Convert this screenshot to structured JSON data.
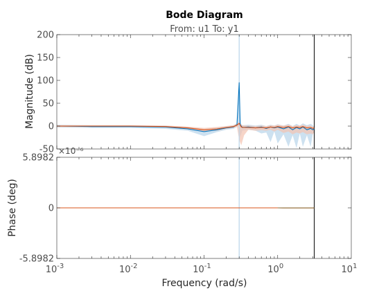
{
  "figure": {
    "title": "Bode Diagram",
    "subtitle": "From: u1  To: y1",
    "xlabel": "Frequency  (rad/s)",
    "colors": {
      "axes": "#262626",
      "tick_label": "#4d4d4d",
      "series_blue": "#0072bd",
      "series_blue_band": "#b8d4ea",
      "series_red": "#d95319",
      "series_red_band": "#f3c3b0",
      "black_line": "#000000"
    }
  },
  "chart_data": [
    {
      "type": "line",
      "panel": "magnitude",
      "ylabel": "Magnitude (dB)",
      "xscale": "log",
      "xlim": [
        0.001,
        10
      ],
      "ylim": [
        -50,
        200
      ],
      "yticks": [
        "-50",
        "0",
        "50",
        "100",
        "150",
        "200"
      ],
      "grid": false,
      "vertical_lines": [
        {
          "name": "blue-vertical-line",
          "x": 0.3,
          "color": "#b8d4ea"
        },
        {
          "name": "black-vertical-line",
          "x": 3.14,
          "color": "#000000"
        }
      ],
      "series": [
        {
          "color": "#0072bd",
          "band_color": "#b8d4ea",
          "x": [
            0.001,
            0.003,
            0.01,
            0.03,
            0.06,
            0.1,
            0.15,
            0.2,
            0.25,
            0.28,
            0.3,
            0.31,
            0.33,
            0.4,
            0.5,
            0.6,
            0.7,
            0.8,
            0.9,
            1.0,
            1.2,
            1.4,
            1.6,
            1.8,
            2.0,
            2.2,
            2.5,
            2.8,
            3.0,
            3.14
          ],
          "values": [
            0,
            -1,
            -1,
            -2,
            -6,
            -12,
            -8,
            -4,
            -2,
            3,
            95,
            3,
            -3,
            -2,
            -4,
            -2,
            -5,
            -2,
            -4,
            -2,
            -6,
            -2,
            -8,
            -3,
            -6,
            -2,
            -8,
            -5,
            -8,
            -6
          ],
          "band_lower": [
            -3,
            -4,
            -4,
            -6,
            -10,
            -22,
            -13,
            -8,
            -6,
            -2,
            0,
            -25,
            -10,
            -8,
            -10,
            -16,
            -14,
            -35,
            -12,
            -38,
            -18,
            -45,
            -20,
            -48,
            -16,
            -45,
            -20,
            -45,
            -18,
            -12
          ],
          "band_upper": [
            3,
            2,
            2,
            1,
            -2,
            -7,
            -3,
            0,
            2,
            6,
            95,
            8,
            2,
            3,
            1,
            3,
            0,
            3,
            1,
            4,
            1,
            5,
            0,
            5,
            1,
            6,
            2,
            5,
            2,
            -2
          ]
        },
        {
          "color": "#d95319",
          "band_color": "#f3c3b0",
          "x": [
            0.001,
            0.003,
            0.01,
            0.03,
            0.06,
            0.1,
            0.15,
            0.2,
            0.25,
            0.28,
            0.3,
            0.32,
            0.35,
            0.4,
            0.5,
            0.6,
            0.7,
            0.8,
            0.9,
            1.0,
            1.2,
            1.4,
            1.6,
            1.8,
            2.0,
            2.2,
            2.5,
            2.8,
            3.0,
            3.14
          ],
          "values": [
            0,
            0,
            0,
            -1,
            -4,
            -8,
            -6,
            -3,
            -1,
            2,
            6,
            -2,
            -3,
            -3,
            -4,
            -3,
            -4,
            -2,
            -3,
            -1,
            -3,
            -1,
            -4,
            -2,
            -3,
            -1,
            -4,
            -3,
            -5,
            -4
          ],
          "band_lower": [
            -2,
            -2,
            -2,
            -3,
            -7,
            -12,
            -10,
            -6,
            -4,
            -2,
            -30,
            -42,
            -20,
            -8,
            -10,
            -9,
            -10,
            -8,
            -12,
            -8,
            -15,
            -12,
            -18,
            -14,
            -16,
            -13,
            -18,
            -16,
            -18,
            -14
          ],
          "band_upper": [
            2,
            2,
            2,
            1,
            -1,
            -4,
            -2,
            0,
            2,
            5,
            10,
            3,
            1,
            1,
            0,
            1,
            0,
            2,
            1,
            3,
            1,
            3,
            0,
            2,
            1,
            3,
            0,
            1,
            -1,
            0
          ]
        }
      ]
    },
    {
      "type": "line",
      "panel": "phase",
      "ylabel": "Phase (deg)",
      "xscale": "log",
      "xlim": [
        0.001,
        10
      ],
      "ylim": [
        -5.8982e-06,
        5.8982e-06
      ],
      "yticks": [
        "-5.8982",
        "0",
        "5.8982"
      ],
      "yexponent": "×10⁻⁶",
      "xticks": [
        {
          "base": "10",
          "exp": "-3"
        },
        {
          "base": "10",
          "exp": "-2"
        },
        {
          "base": "10",
          "exp": "-1"
        },
        {
          "base": "10",
          "exp": "0"
        },
        {
          "base": "10",
          "exp": "1"
        }
      ],
      "grid": false,
      "vertical_lines": [
        {
          "name": "blue-vertical-line",
          "x": 0.3,
          "color": "#b8d4ea"
        },
        {
          "name": "black-vertical-line",
          "x": 3.14,
          "color": "#000000"
        }
      ],
      "series": [
        {
          "color": "#d95319",
          "x": [
            0.001,
            0.01,
            0.1,
            0.3,
            1.0,
            1.2,
            2.0,
            3.14
          ],
          "values": [
            0,
            0,
            0,
            0,
            0,
            -1e-08,
            -1e-08,
            -1e-08
          ]
        },
        {
          "color": "#8c6d3a",
          "x": [
            1.0,
            1.2,
            2.0,
            3.14
          ],
          "values": [
            0,
            -1e-08,
            -1e-08,
            -1e-08
          ]
        }
      ]
    }
  ]
}
